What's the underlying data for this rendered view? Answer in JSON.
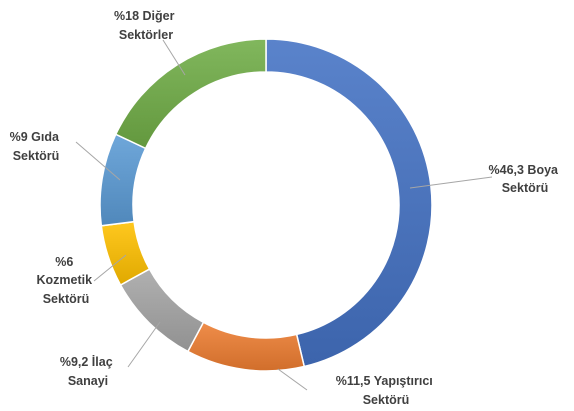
{
  "chart_data": {
    "type": "pie",
    "variant": "donut",
    "categories": [
      "%46,3  Boya Sektörü",
      "%11,5 Yapıştırıcı Sektörü",
      "%9,2 İlaç Sanayi",
      "%6 Kozmetik Sektörü",
      "%9 Gıda Sektörü",
      "%18 Diğer Sektörler"
    ],
    "values": [
      46.3,
      11.5,
      9.2,
      6,
      9,
      18
    ],
    "colors": [
      "#4472C4",
      "#ED7D31",
      "#A5A5A5",
      "#FFC000",
      "#5B9BD5",
      "#70AD47"
    ],
    "legend": "none",
    "title": ""
  },
  "labels": {
    "boya": [
      "%46,3  Boya",
      "Sektörü"
    ],
    "yapistirici": [
      "%11,5 Yapıştırıcı",
      "Sektörü"
    ],
    "ilac": [
      "%9,2 İlaç",
      "Sanayi"
    ],
    "kozmetik": [
      "%6",
      "Kozmetik",
      "Sektörü"
    ],
    "gida": [
      "%9 Gıda",
      "Sektörü"
    ],
    "diger": [
      "%18 Diğer",
      "Sektörler"
    ]
  }
}
